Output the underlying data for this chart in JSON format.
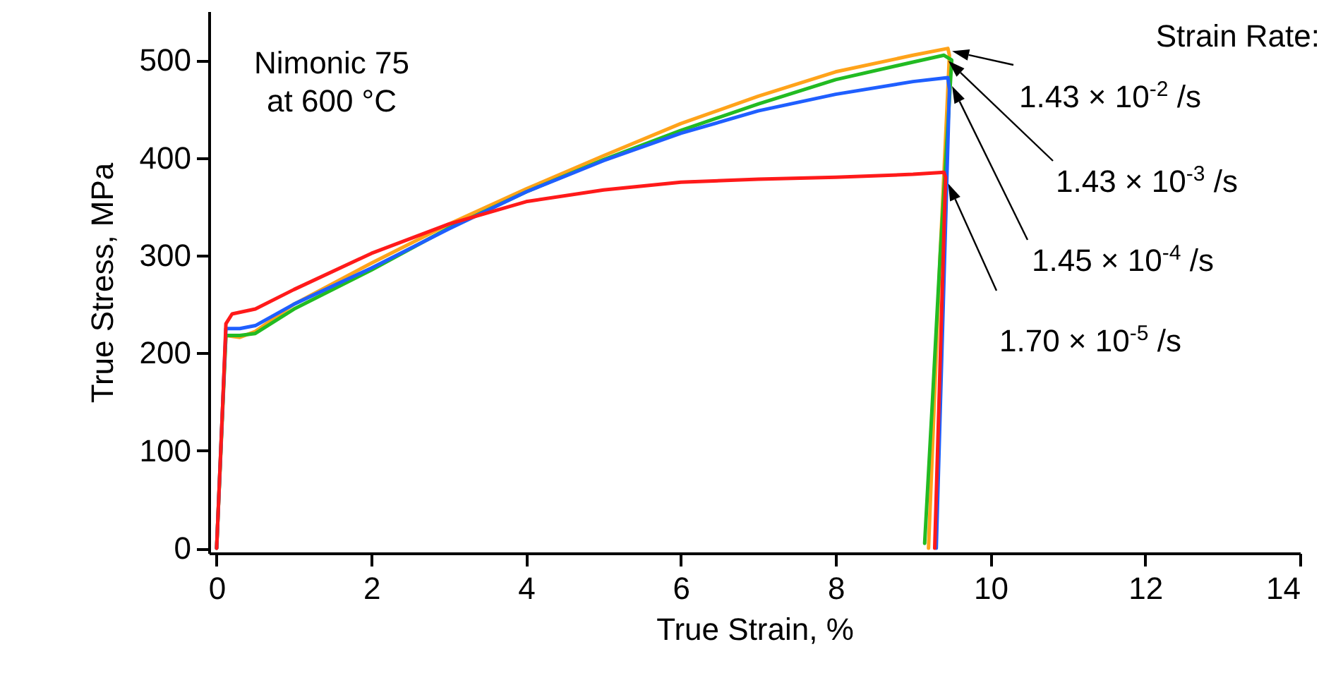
{
  "chart_data": {
    "type": "line",
    "xlabel": "True Strain, %",
    "ylabel": "True Stress, MPa",
    "legend_title": "Strain Rate:",
    "annotations": [
      "Nimonic 75",
      "at 600 °C"
    ],
    "xlim": [
      -0.1,
      14
    ],
    "xticks": [
      0,
      2,
      4,
      6,
      8,
      10,
      12,
      14
    ],
    "ylim": [
      -5,
      550
    ],
    "yticks": [
      0,
      100,
      200,
      300,
      400,
      500
    ],
    "grid": false,
    "line_style": "solid",
    "marker": "none",
    "series": [
      {
        "name": "1.43 × 10$^{-2}$ /s",
        "color": "#ffa31a",
        "x": [
          0,
          0.08,
          0.12,
          0.3,
          0.5,
          1,
          2,
          3,
          4,
          5,
          6,
          7,
          8,
          9,
          9.45,
          9.47,
          9.35,
          9.2
        ],
        "values": [
          0,
          150,
          218,
          216,
          222,
          250,
          292,
          332,
          368,
          402,
          435,
          463,
          488,
          505,
          512,
          505,
          300,
          0
        ]
      },
      {
        "name": "1.43 × 10$^{-3}$ /s",
        "color": "#22bb22",
        "x": [
          0,
          0.12,
          0.3,
          0.5,
          1,
          2,
          3,
          4,
          5,
          6,
          7,
          8,
          9,
          9.4,
          9.5,
          9.35,
          9.25,
          9.15
        ],
        "values": [
          0,
          218,
          218,
          220,
          245,
          285,
          328,
          365,
          398,
          428,
          455,
          480,
          498,
          505,
          500,
          300,
          150,
          5
        ]
      },
      {
        "name": "1.45 × 10$^{-4}$ /s",
        "color": "#1f5fff",
        "x": [
          0,
          0.12,
          0.3,
          0.5,
          1,
          2,
          3,
          4,
          5,
          6,
          7,
          8,
          9,
          9.45,
          9.47,
          9.3
        ],
        "values": [
          0,
          225,
          225,
          228,
          250,
          287,
          327,
          365,
          397,
          425,
          448,
          465,
          478,
          482,
          470,
          0
        ]
      },
      {
        "name": "1.70 × 10$^{-5}$ /s",
        "color": "#ff1a1a",
        "x": [
          0,
          0.08,
          0.12,
          0.2,
          0.5,
          1,
          2,
          3,
          4,
          5,
          6,
          7,
          8,
          9,
          9.4,
          9.42,
          9.28
        ],
        "values": [
          0,
          150,
          230,
          240,
          245,
          265,
          302,
          332,
          355,
          367,
          375,
          378,
          380,
          383,
          385,
          380,
          0
        ]
      }
    ]
  }
}
